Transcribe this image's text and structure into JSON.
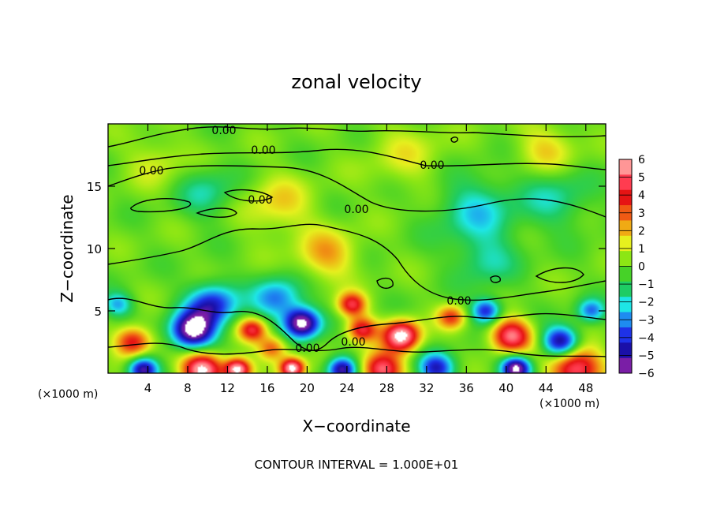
{
  "chart_data": {
    "type": "heatmap",
    "title": "zonal velocity",
    "xlabel": "X−coordinate",
    "ylabel": "Z−coordinate",
    "x_unit_left": "(×1000 m)",
    "x_unit_right": "(×1000 m)",
    "xlim": [
      0,
      50
    ],
    "ylim": [
      0,
      20
    ],
    "x_ticks": [
      4,
      8,
      12,
      16,
      20,
      24,
      28,
      32,
      36,
      40,
      44,
      48
    ],
    "x_tick_labels": [
      "4",
      "8",
      "12",
      "16",
      "20",
      "24",
      "28",
      "32",
      "36",
      "40",
      "44",
      "48"
    ],
    "y_ticks": [
      5,
      10,
      15
    ],
    "y_tick_labels": [
      "5",
      "10",
      "15"
    ],
    "colorbar": {
      "min": -6,
      "max": 6,
      "ticks": [
        6,
        5,
        4,
        3,
        2,
        1,
        0,
        -1,
        -2,
        -3,
        -4,
        -5,
        -6
      ],
      "tick_labels": [
        "6",
        "5",
        "4",
        "3",
        "2",
        "1",
        "0",
        "−1",
        "−2",
        "−3",
        "−4",
        "−5",
        "−6"
      ],
      "colors": [
        "#7a1ea6",
        "#1a10a8",
        "#1e32e8",
        "#1e8cf0",
        "#1ee6e6",
        "#1ecc64",
        "#46d228",
        "#8ce614",
        "#e6f01e",
        "#f0aa14",
        "#f05a14",
        "#e61414",
        "#ff3c50",
        "#ff9696"
      ]
    },
    "zero_contour_label": "0.00",
    "contour_labels": [
      "0.00",
      "0.00",
      "0.00",
      "0.00",
      "0.00",
      "0.00",
      "0.00",
      "0.00",
      "0.00"
    ],
    "features": [
      {
        "x": 8.5,
        "z": 3.4,
        "value": -6,
        "spread": 2.2
      },
      {
        "x": 10.5,
        "z": 5.5,
        "value": -4,
        "spread": 2.5
      },
      {
        "x": 19.5,
        "z": 4.0,
        "value": -6,
        "spread": 1.8
      },
      {
        "x": 17.0,
        "z": 6.0,
        "value": -3,
        "spread": 2.5
      },
      {
        "x": 2.5,
        "z": 2.5,
        "value": 4,
        "spread": 1.8
      },
      {
        "x": 14.5,
        "z": 3.5,
        "value": 4,
        "spread": 1.4
      },
      {
        "x": 16.5,
        "z": 2.0,
        "value": 3,
        "spread": 1.5
      },
      {
        "x": 24.5,
        "z": 5.5,
        "value": 4,
        "spread": 1.4
      },
      {
        "x": 29.5,
        "z": 3.0,
        "value": 6,
        "spread": 1.8
      },
      {
        "x": 25.5,
        "z": 3.5,
        "value": 4,
        "spread": 1.5
      },
      {
        "x": 34.5,
        "z": 4.5,
        "value": 3,
        "spread": 1.4
      },
      {
        "x": 40.5,
        "z": 3.0,
        "value": 5,
        "spread": 2.0
      },
      {
        "x": 38.0,
        "z": 5.0,
        "value": -4,
        "spread": 1.5
      },
      {
        "x": 45.5,
        "z": 2.5,
        "value": -5,
        "spread": 1.8
      },
      {
        "x": 48.5,
        "z": 5.0,
        "value": -3,
        "spread": 1.4
      },
      {
        "x": 9.5,
        "z": 0.3,
        "value": 6,
        "spread": 2.0
      },
      {
        "x": 13.0,
        "z": 0.3,
        "value": 6,
        "spread": 1.3
      },
      {
        "x": 3.5,
        "z": 0.3,
        "value": -5,
        "spread": 1.5
      },
      {
        "x": 18.5,
        "z": 0.4,
        "value": 6,
        "spread": 1.2
      },
      {
        "x": 23.5,
        "z": 0.3,
        "value": -5,
        "spread": 1.5
      },
      {
        "x": 27.5,
        "z": 0.3,
        "value": 5,
        "spread": 2.0
      },
      {
        "x": 33.0,
        "z": 0.4,
        "value": -4,
        "spread": 1.8
      },
      {
        "x": 41.0,
        "z": 0.4,
        "value": -6,
        "spread": 1.5
      },
      {
        "x": 47.0,
        "z": 0.4,
        "value": 5,
        "spread": 2.5
      },
      {
        "x": 22.0,
        "z": 9.5,
        "value": 2,
        "spread": 3.0
      },
      {
        "x": 17.0,
        "z": 13.5,
        "value": 1.5,
        "spread": 3.5
      },
      {
        "x": 37.0,
        "z": 13.0,
        "value": -2,
        "spread": 4.0
      },
      {
        "x": 45.0,
        "z": 14.0,
        "value": -1.5,
        "spread": 3.5
      },
      {
        "x": 10.0,
        "z": 14.5,
        "value": -1.5,
        "spread": 3.0
      },
      {
        "x": 5.0,
        "z": 17.0,
        "value": 1,
        "spread": 3.0
      },
      {
        "x": 30.0,
        "z": 17.5,
        "value": 1,
        "spread": 4.0
      },
      {
        "x": 44.0,
        "z": 18.0,
        "value": 1.5,
        "spread": 3.0
      },
      {
        "x": 38.0,
        "z": 9.0,
        "value": -1.5,
        "spread": 3.0
      },
      {
        "x": 1.0,
        "z": 5.5,
        "value": -2.5,
        "spread": 1.5
      }
    ]
  },
  "footer": {
    "contour_interval": "CONTOUR INTERVAL = 1.000E+01"
  }
}
